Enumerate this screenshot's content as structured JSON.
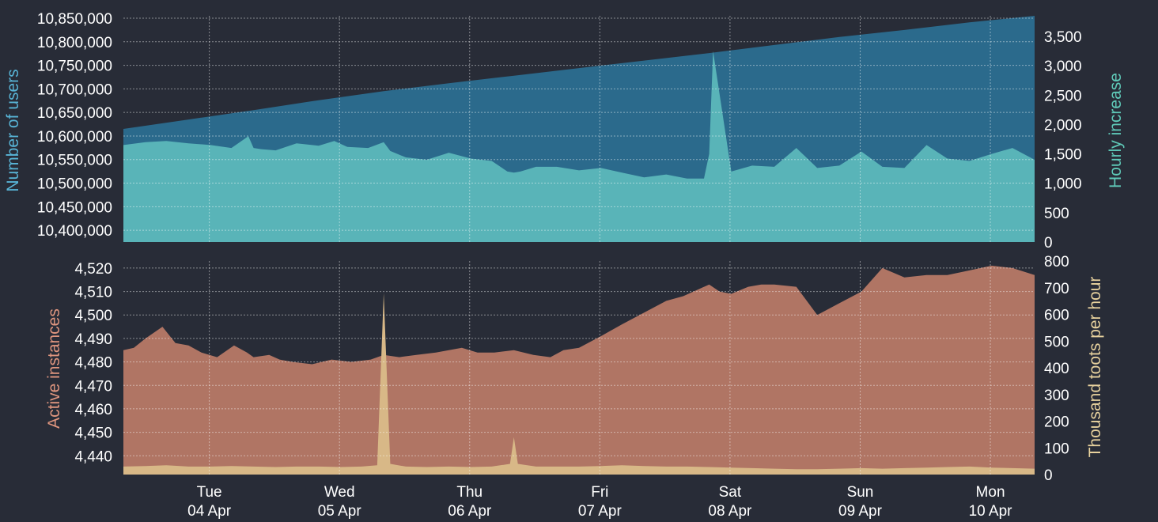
{
  "chart_data": [
    {
      "type": "area",
      "ylabel": "Number of users",
      "y2label": "Hourly increase",
      "ylim": [
        10375000,
        10855000
      ],
      "y2lim": [
        0,
        3850
      ],
      "yticks": [
        "10,400,000",
        "10,450,000",
        "10,500,000",
        "10,550,000",
        "10,600,000",
        "10,650,000",
        "10,700,000",
        "10,750,000",
        "10,800,000",
        "10,850,000"
      ],
      "y2ticks": [
        "0",
        "500",
        "1,000",
        "1,500",
        "2,000",
        "2,500",
        "3,000",
        "3,500"
      ],
      "xlim": [
        0,
        7
      ],
      "series": [
        {
          "name": "Number of users",
          "axis": "left",
          "color": "#2b6a8c",
          "x": [
            0,
            0.5,
            1,
            1.5,
            2,
            2.5,
            3,
            3.5,
            4,
            4.5,
            5,
            5.5,
            6,
            6.5,
            7
          ],
          "y": [
            10615000,
            10635000,
            10655000,
            10676000,
            10695000,
            10712000,
            10728000,
            10744000,
            10760000,
            10776000,
            10793000,
            10810000,
            10825000,
            10841000,
            10856000
          ]
        },
        {
          "name": "Hourly increase",
          "axis": "right",
          "color": "#59b4b8",
          "x": [
            0,
            0.17,
            0.33,
            0.5,
            0.67,
            0.83,
            0.96,
            1.0,
            1.06,
            1.17,
            1.33,
            1.5,
            1.62,
            1.72,
            1.88,
            2.0,
            2.05,
            2.17,
            2.33,
            2.5,
            2.67,
            2.83,
            2.95,
            3.0,
            3.05,
            3.17,
            3.33,
            3.5,
            3.67,
            3.83,
            4.0,
            4.17,
            4.33,
            4.46,
            4.5,
            4.53,
            4.67,
            4.83,
            5.0,
            5.17,
            5.33,
            5.5,
            5.67,
            5.83,
            6.0,
            6.17,
            6.33,
            6.5,
            6.67,
            6.83,
            7.0
          ],
          "y": [
            1650,
            1700,
            1720,
            1680,
            1650,
            1600,
            1800,
            1600,
            1580,
            1560,
            1680,
            1640,
            1720,
            1620,
            1600,
            1700,
            1550,
            1440,
            1400,
            1520,
            1420,
            1380,
            1200,
            1180,
            1200,
            1280,
            1280,
            1220,
            1260,
            1180,
            1100,
            1150,
            1080,
            1080,
            1500,
            3250,
            1200,
            1300,
            1280,
            1600,
            1260,
            1300,
            1540,
            1280,
            1260,
            1650,
            1420,
            1380,
            1500,
            1600,
            1400
          ]
        }
      ]
    },
    {
      "type": "area",
      "ylabel": "Active instances",
      "y2label": "Thousand toots per hour",
      "ylim": [
        4432,
        4523
      ],
      "y2lim": [
        0,
        800
      ],
      "yticks": [
        "4,440",
        "4,450",
        "4,460",
        "4,470",
        "4,480",
        "4,490",
        "4,500",
        "4,510",
        "4,520"
      ],
      "y2ticks": [
        "0",
        "100",
        "200",
        "300",
        "400",
        "500",
        "600",
        "700",
        "800"
      ],
      "xlim": [
        0,
        7
      ],
      "series": [
        {
          "name": "Active instances",
          "axis": "left",
          "color": "#b07564",
          "x": [
            0,
            0.08,
            0.17,
            0.3,
            0.4,
            0.5,
            0.6,
            0.72,
            0.85,
            0.95,
            1.0,
            1.12,
            1.2,
            1.3,
            1.45,
            1.6,
            1.75,
            1.9,
            2.0,
            2.12,
            2.25,
            2.4,
            2.5,
            2.6,
            2.72,
            2.85,
            3.0,
            3.15,
            3.28,
            3.38,
            3.5,
            3.67,
            3.83,
            4.0,
            4.17,
            4.3,
            4.42,
            4.5,
            4.58,
            4.67,
            4.8,
            4.9,
            5.0,
            5.17,
            5.33,
            5.5,
            5.67,
            5.83,
            6.0,
            6.17,
            6.33,
            6.5,
            6.67,
            6.83,
            7.0
          ],
          "y": [
            4485,
            4486,
            4490,
            4495,
            4488,
            4487,
            4484,
            4482,
            4487,
            4484,
            4482,
            4483,
            4481,
            4480,
            4479,
            4481,
            4480,
            4481,
            4483,
            4482,
            4483,
            4484,
            4485,
            4486,
            4484,
            4484,
            4485,
            4483,
            4482,
            4485,
            4486,
            4491,
            4496,
            4501,
            4506,
            4508,
            4511,
            4513,
            4510,
            4509,
            4512,
            4513,
            4513,
            4512,
            4500,
            4505,
            4510,
            4520,
            4516,
            4517,
            4517,
            4519,
            4521,
            4520,
            4517
          ]
        },
        {
          "name": "Thousand toots per hour",
          "axis": "right",
          "color": "#d8b887",
          "x": [
            0,
            0.17,
            0.33,
            0.5,
            0.67,
            0.83,
            1.0,
            1.17,
            1.33,
            1.5,
            1.67,
            1.83,
            1.95,
            2.0,
            2.05,
            2.17,
            2.33,
            2.5,
            2.67,
            2.83,
            2.97,
            3.0,
            3.03,
            3.17,
            3.33,
            3.5,
            3.67,
            3.83,
            4.0,
            4.17,
            4.33,
            4.5,
            4.67,
            4.83,
            5.0,
            5.17,
            5.33,
            5.5,
            5.67,
            5.83,
            6.0,
            6.17,
            6.33,
            6.5,
            6.67,
            6.83,
            7.0
          ],
          "y": [
            30,
            32,
            35,
            30,
            30,
            32,
            30,
            28,
            30,
            30,
            28,
            30,
            35,
            680,
            40,
            30,
            28,
            30,
            28,
            30,
            40,
            140,
            40,
            30,
            30,
            30,
            32,
            35,
            32,
            30,
            30,
            28,
            26,
            24,
            22,
            20,
            20,
            22,
            24,
            22,
            24,
            26,
            28,
            30,
            26,
            24,
            22
          ]
        }
      ]
    }
  ],
  "x_axis": {
    "weekdays": [
      "Tue",
      "Wed",
      "Thu",
      "Fri",
      "Sat",
      "Sun",
      "Mon"
    ],
    "dates": [
      "04 Apr",
      "05 Apr",
      "06 Apr",
      "07 Apr",
      "08 Apr",
      "09 Apr",
      "10 Apr"
    ],
    "tick_positions": [
      0.66,
      1.66,
      2.66,
      3.66,
      4.66,
      5.66,
      6.66
    ]
  },
  "colors": {
    "background": "#282c37",
    "users_label": "#58b4d6",
    "increase_label": "#5fc9b8",
    "instances_label": "#e0967f",
    "toots_label": "#e8d29e"
  }
}
